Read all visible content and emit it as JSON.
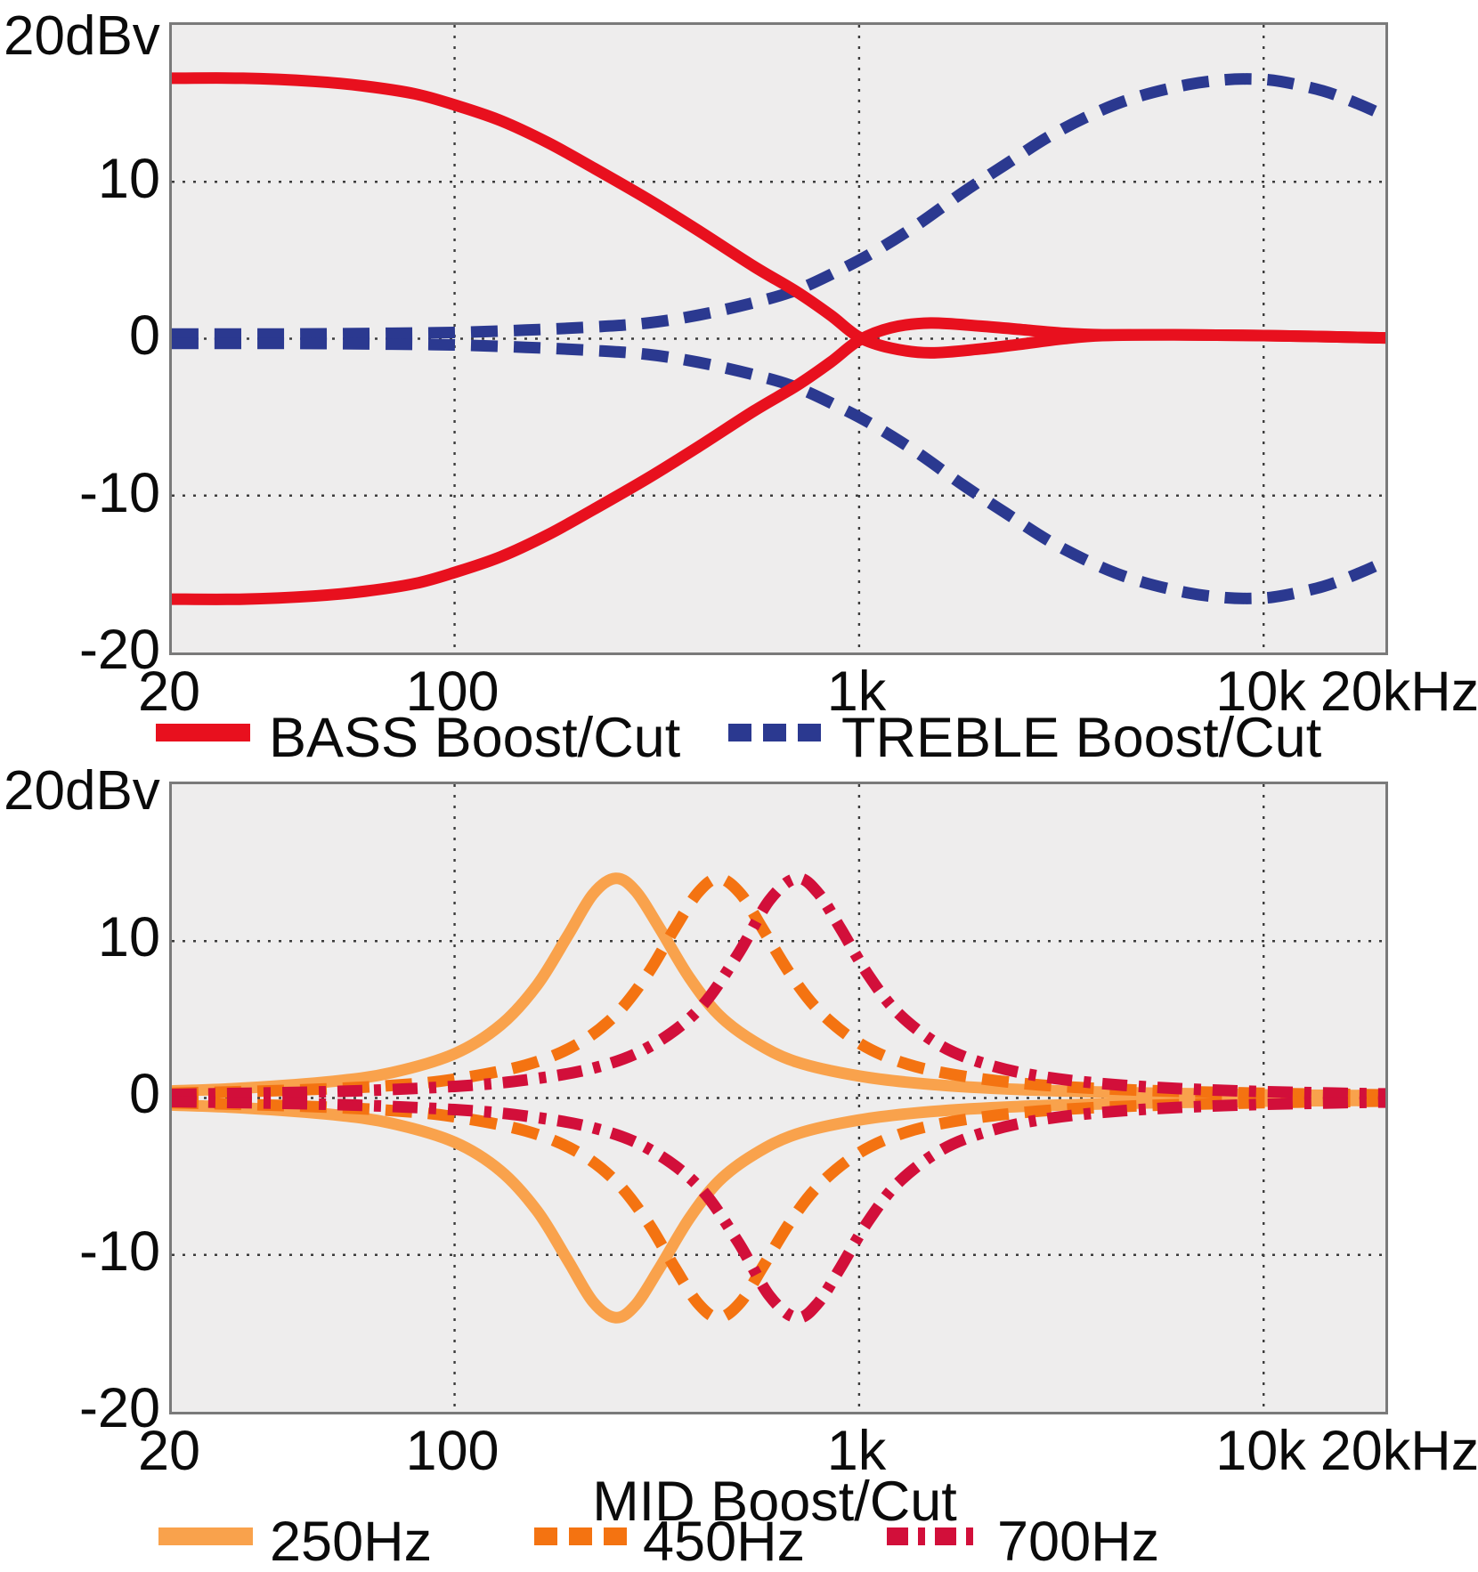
{
  "figure": {
    "description": "EQ frequency response curves",
    "plot_background": "#EEEDED",
    "grid_color": "#3c3c3c",
    "border_color": "#7a7a7a"
  },
  "chart_data": [
    {
      "type": "line",
      "x_scale": "log",
      "x_range": [
        20,
        20000
      ],
      "y_range": [
        -20,
        20
      ],
      "y_axis_label": "20dBv",
      "xlabel": "",
      "title": "",
      "x_ticks": [
        {
          "v": 20,
          "label": "20"
        },
        {
          "v": 100,
          "label": "100"
        },
        {
          "v": 1000,
          "label": "1k"
        },
        {
          "v": 10000,
          "label": "10k"
        },
        {
          "v": 20000,
          "label": "20kHz"
        }
      ],
      "y_ticks": [
        {
          "v": 10,
          "label": "10"
        },
        {
          "v": 0,
          "label": "0"
        },
        {
          "v": -10,
          "label": "-10"
        },
        {
          "v": -20,
          "label": "-20"
        }
      ],
      "legend": [
        {
          "label": "BASS Boost/Cut",
          "color": "#E8101E",
          "style": "solid"
        },
        {
          "label": "TREBLE Boost/Cut",
          "color": "#2B3990",
          "style": "dashed"
        }
      ],
      "series": [
        {
          "name": "TREBLE boost (max)",
          "color": "#2B3990",
          "style": "dashed",
          "points": [
            [
              20,
              0.3
            ],
            [
              40,
              0.3
            ],
            [
              70,
              0.35
            ],
            [
              100,
              0.4
            ],
            [
              150,
              0.55
            ],
            [
              220,
              0.75
            ],
            [
              300,
              1.0
            ],
            [
              400,
              1.5
            ],
            [
              550,
              2.3
            ],
            [
              700,
              3.1
            ],
            [
              900,
              4.4
            ],
            [
              1100,
              5.6
            ],
            [
              1400,
              7.3
            ],
            [
              1800,
              9.3
            ],
            [
              2300,
              11.1
            ],
            [
              3000,
              13.0
            ],
            [
              4000,
              14.6
            ],
            [
              5000,
              15.5
            ],
            [
              6500,
              16.2
            ],
            [
              8000,
              16.5
            ],
            [
              9500,
              16.55
            ],
            [
              11000,
              16.4
            ],
            [
              14000,
              15.8
            ],
            [
              17000,
              15.0
            ],
            [
              20000,
              14.2
            ]
          ]
        },
        {
          "name": "TREBLE cut (max)",
          "color": "#2B3990",
          "style": "dashed",
          "points": [
            [
              20,
              -0.3
            ],
            [
              40,
              -0.3
            ],
            [
              70,
              -0.35
            ],
            [
              100,
              -0.4
            ],
            [
              150,
              -0.55
            ],
            [
              220,
              -0.75
            ],
            [
              300,
              -1.0
            ],
            [
              400,
              -1.5
            ],
            [
              550,
              -2.3
            ],
            [
              700,
              -3.1
            ],
            [
              900,
              -4.4
            ],
            [
              1100,
              -5.6
            ],
            [
              1400,
              -7.3
            ],
            [
              1800,
              -9.3
            ],
            [
              2300,
              -11.1
            ],
            [
              3000,
              -13.0
            ],
            [
              4000,
              -14.6
            ],
            [
              5000,
              -15.5
            ],
            [
              6500,
              -16.2
            ],
            [
              8000,
              -16.5
            ],
            [
              9500,
              -16.55
            ],
            [
              11000,
              -16.4
            ],
            [
              14000,
              -15.8
            ],
            [
              17000,
              -15.0
            ],
            [
              20000,
              -14.2
            ]
          ]
        },
        {
          "name": "BASS boost (max)",
          "color": "#E8101E",
          "style": "solid",
          "points": [
            [
              20,
              16.6
            ],
            [
              30,
              16.6
            ],
            [
              45,
              16.4
            ],
            [
              60,
              16.1
            ],
            [
              80,
              15.6
            ],
            [
              100,
              14.9
            ],
            [
              130,
              13.9
            ],
            [
              170,
              12.5
            ],
            [
              220,
              10.9
            ],
            [
              300,
              8.9
            ],
            [
              400,
              6.9
            ],
            [
              550,
              4.6
            ],
            [
              700,
              3.0
            ],
            [
              850,
              1.5
            ],
            [
              1000,
              0.1
            ],
            [
              1200,
              -0.6
            ],
            [
              1500,
              -0.9
            ],
            [
              2000,
              -0.65
            ],
            [
              2600,
              -0.3
            ],
            [
              3200,
              0.0
            ],
            [
              4000,
              0.2
            ],
            [
              6000,
              0.25
            ],
            [
              10000,
              0.2
            ],
            [
              20000,
              0.05
            ]
          ]
        },
        {
          "name": "BASS cut (max)",
          "color": "#E8101E",
          "style": "solid",
          "points": [
            [
              20,
              -16.6
            ],
            [
              30,
              -16.6
            ],
            [
              45,
              -16.4
            ],
            [
              60,
              -16.1
            ],
            [
              80,
              -15.6
            ],
            [
              100,
              -14.9
            ],
            [
              130,
              -13.9
            ],
            [
              170,
              -12.5
            ],
            [
              220,
              -10.9
            ],
            [
              300,
              -8.9
            ],
            [
              400,
              -6.9
            ],
            [
              550,
              -4.6
            ],
            [
              700,
              -3.0
            ],
            [
              850,
              -1.5
            ],
            [
              1000,
              -0.1
            ],
            [
              1200,
              0.7
            ],
            [
              1500,
              1.0
            ],
            [
              2000,
              0.8
            ],
            [
              2600,
              0.55
            ],
            [
              3200,
              0.35
            ],
            [
              4000,
              0.25
            ],
            [
              6000,
              0.25
            ],
            [
              10000,
              0.2
            ],
            [
              20000,
              0.05
            ]
          ]
        }
      ]
    },
    {
      "type": "line",
      "x_scale": "log",
      "x_range": [
        20,
        20000
      ],
      "y_range": [
        -20,
        20
      ],
      "y_axis_label": "20dBv",
      "title": "MID Boost/Cut",
      "x_ticks": [
        {
          "v": 20,
          "label": "20"
        },
        {
          "v": 100,
          "label": "100"
        },
        {
          "v": 1000,
          "label": "1k"
        },
        {
          "v": 10000,
          "label": "10k"
        },
        {
          "v": 20000,
          "label": "20kHz"
        }
      ],
      "y_ticks": [
        {
          "v": 10,
          "label": "10"
        },
        {
          "v": 0,
          "label": "0"
        },
        {
          "v": -10,
          "label": "-10"
        },
        {
          "v": -20,
          "label": "-20"
        }
      ],
      "legend": [
        {
          "label": "250Hz",
          "color": "#F9A24C",
          "style": "solid"
        },
        {
          "label": "450Hz",
          "color": "#F47311",
          "style": "dashed"
        },
        {
          "label": "700Hz",
          "color": "#D20F3A",
          "style": "dashdot"
        }
      ],
      "series": [
        {
          "name": "MID 250Hz boost",
          "color": "#F9A24C",
          "style": "solid",
          "points": [
            [
              20,
              0.45
            ],
            [
              30,
              0.63
            ],
            [
              50,
              1.06
            ],
            [
              70,
              1.62
            ],
            [
              100,
              2.82
            ],
            [
              130,
              4.65
            ],
            [
              160,
              7.2
            ],
            [
              190,
              10.3
            ],
            [
              220,
              13.0
            ],
            [
              250,
              14.0
            ],
            [
              280,
              13.2
            ],
            [
              320,
              10.9
            ],
            [
              380,
              7.7
            ],
            [
              450,
              5.3
            ],
            [
              550,
              3.6
            ],
            [
              700,
              2.3
            ],
            [
              1000,
              1.4
            ],
            [
              1500,
              0.87
            ],
            [
              2500,
              0.54
            ],
            [
              5000,
              0.32
            ],
            [
              10000,
              0.2
            ],
            [
              20000,
              0.15
            ]
          ]
        },
        {
          "name": "MID 250Hz cut",
          "color": "#F9A24C",
          "style": "solid",
          "points": [
            [
              20,
              -0.45
            ],
            [
              30,
              -0.63
            ],
            [
              50,
              -1.06
            ],
            [
              70,
              -1.62
            ],
            [
              100,
              -2.82
            ],
            [
              130,
              -4.65
            ],
            [
              160,
              -7.2
            ],
            [
              190,
              -10.3
            ],
            [
              220,
              -13.0
            ],
            [
              250,
              -14.0
            ],
            [
              280,
              -13.2
            ],
            [
              320,
              -10.9
            ],
            [
              380,
              -7.7
            ],
            [
              450,
              -5.3
            ],
            [
              550,
              -3.6
            ],
            [
              700,
              -2.3
            ],
            [
              1000,
              -1.4
            ],
            [
              1500,
              -0.87
            ],
            [
              2500,
              -0.54
            ],
            [
              5000,
              -0.32
            ],
            [
              10000,
              -0.2
            ],
            [
              20000,
              -0.15
            ]
          ]
        },
        {
          "name": "MID 450Hz boost",
          "color": "#F47311",
          "style": "dashed",
          "points": [
            [
              20,
              0.3
            ],
            [
              40,
              0.5
            ],
            [
              70,
              0.8
            ],
            [
              100,
              1.2
            ],
            [
              150,
              2.1
            ],
            [
              200,
              3.4
            ],
            [
              250,
              5.3
            ],
            [
              300,
              7.9
            ],
            [
              350,
              10.8
            ],
            [
              400,
              13.1
            ],
            [
              450,
              14.0
            ],
            [
              510,
              13.0
            ],
            [
              580,
              10.7
            ],
            [
              680,
              7.8
            ],
            [
              800,
              5.5
            ],
            [
              1000,
              3.5
            ],
            [
              1300,
              2.2
            ],
            [
              1800,
              1.4
            ],
            [
              2800,
              0.83
            ],
            [
              5000,
              0.49
            ],
            [
              10000,
              0.3
            ],
            [
              20000,
              0.2
            ]
          ]
        },
        {
          "name": "MID 450Hz cut",
          "color": "#F47311",
          "style": "dashed",
          "points": [
            [
              20,
              -0.3
            ],
            [
              40,
              -0.5
            ],
            [
              70,
              -0.8
            ],
            [
              100,
              -1.2
            ],
            [
              150,
              -2.1
            ],
            [
              200,
              -3.4
            ],
            [
              250,
              -5.3
            ],
            [
              300,
              -7.9
            ],
            [
              350,
              -10.8
            ],
            [
              400,
              -13.1
            ],
            [
              450,
              -14.0
            ],
            [
              510,
              -13.0
            ],
            [
              580,
              -10.7
            ],
            [
              680,
              -7.8
            ],
            [
              800,
              -5.5
            ],
            [
              1000,
              -3.5
            ],
            [
              1300,
              -2.2
            ],
            [
              1800,
              -1.4
            ],
            [
              2800,
              -0.83
            ],
            [
              5000,
              -0.49
            ],
            [
              10000,
              -0.3
            ],
            [
              20000,
              -0.2
            ]
          ]
        },
        {
          "name": "MID 700Hz boost",
          "color": "#D20F3A",
          "style": "dashdot",
          "points": [
            [
              20,
              0.23
            ],
            [
              50,
              0.41
            ],
            [
              100,
              0.74
            ],
            [
              150,
              1.15
            ],
            [
              220,
              1.9
            ],
            [
              300,
              3.2
            ],
            [
              400,
              5.6
            ],
            [
              500,
              9.1
            ],
            [
              600,
              12.6
            ],
            [
              700,
              14.0
            ],
            [
              790,
              13.1
            ],
            [
              900,
              10.8
            ],
            [
              1050,
              7.9
            ],
            [
              1250,
              5.4
            ],
            [
              1600,
              3.3
            ],
            [
              2100,
              2.1
            ],
            [
              2900,
              1.33
            ],
            [
              4500,
              0.81
            ],
            [
              8000,
              0.48
            ],
            [
              15000,
              0.31
            ],
            [
              20000,
              0.26
            ]
          ]
        },
        {
          "name": "MID 700Hz cut",
          "color": "#D20F3A",
          "style": "dashdot",
          "points": [
            [
              20,
              -0.23
            ],
            [
              50,
              -0.41
            ],
            [
              100,
              -0.74
            ],
            [
              150,
              -1.15
            ],
            [
              220,
              -1.9
            ],
            [
              300,
              -3.2
            ],
            [
              400,
              -5.6
            ],
            [
              500,
              -9.1
            ],
            [
              600,
              -12.6
            ],
            [
              700,
              -14.0
            ],
            [
              790,
              -13.1
            ],
            [
              900,
              -10.8
            ],
            [
              1050,
              -7.9
            ],
            [
              1250,
              -5.4
            ],
            [
              1600,
              -3.3
            ],
            [
              2100,
              -2.1
            ],
            [
              2900,
              -1.33
            ],
            [
              4500,
              -0.81
            ],
            [
              8000,
              -0.48
            ],
            [
              15000,
              -0.31
            ],
            [
              20000,
              -0.26
            ]
          ]
        }
      ]
    }
  ]
}
